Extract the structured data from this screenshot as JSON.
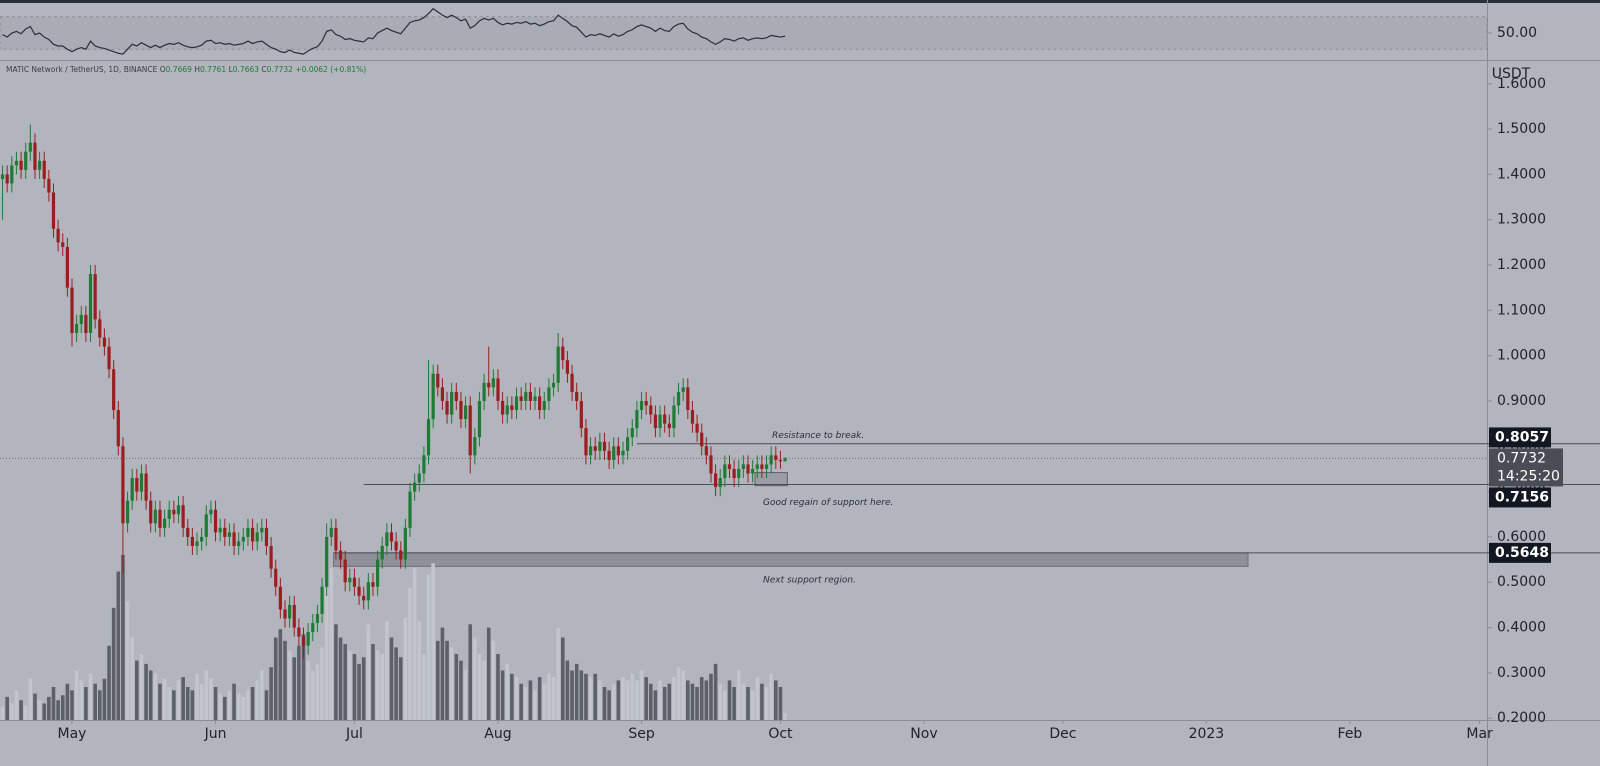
{
  "chart_data": {
    "type": "candlestick",
    "title": "MATIC Network / TetherUS, 1D, BINANCE",
    "ohlc_labels": [
      "O",
      "H",
      "L",
      "C"
    ],
    "change": "+0.0062",
    "change_percent": "(+0.81%)",
    "axis_unit": "USDT",
    "countdown": "14:25:20",
    "up_color": "#1e7b34",
    "down_color": "#9b1d20",
    "volume_up_color": "#c3c5cc",
    "volume_down_color": "#5d6069",
    "rsi_color": "#2a2e39",
    "open": [
      1.39,
      1.4,
      1.38,
      1.42,
      1.43,
      1.41,
      1.45,
      1.47,
      1.41,
      1.43,
      1.39,
      1.36,
      1.28,
      1.25,
      1.24,
      1.15,
      1.05,
      1.07,
      1.09,
      1.05,
      1.18,
      1.08,
      1.04,
      1.02,
      0.97,
      0.88,
      0.8,
      0.63,
      0.68,
      0.73,
      0.7,
      0.74,
      0.68,
      0.63,
      0.66,
      0.62,
      0.64,
      0.66,
      0.65,
      0.67,
      0.62,
      0.6,
      0.58,
      0.59,
      0.6,
      0.65,
      0.66,
      0.61,
      0.62,
      0.6,
      0.61,
      0.58,
      0.59,
      0.6,
      0.62,
      0.59,
      0.61,
      0.62,
      0.58,
      0.53,
      0.49,
      0.44,
      0.42,
      0.45,
      0.4,
      0.38,
      0.36,
      0.39,
      0.41,
      0.43,
      0.49,
      0.6,
      0.62,
      0.57,
      0.55,
      0.5,
      0.51,
      0.49,
      0.47,
      0.46,
      0.5,
      0.49,
      0.55,
      0.58,
      0.61,
      0.59,
      0.57,
      0.55,
      0.62,
      0.7,
      0.72,
      0.74,
      0.78,
      0.86,
      0.96,
      0.93,
      0.9,
      0.87,
      0.92,
      0.9,
      0.86,
      0.89,
      0.78,
      0.82,
      0.9,
      0.94,
      0.93,
      0.95,
      0.9,
      0.87,
      0.89,
      0.88,
      0.91,
      0.9,
      0.92,
      0.9,
      0.91,
      0.88,
      0.9,
      0.93,
      0.94,
      1.02,
      0.99,
      0.96,
      0.92,
      0.9,
      0.84,
      0.78,
      0.8,
      0.79,
      0.81,
      0.79,
      0.77,
      0.8,
      0.78,
      0.79,
      0.82,
      0.84,
      0.88,
      0.9,
      0.89,
      0.87,
      0.84,
      0.87,
      0.85,
      0.84,
      0.89,
      0.92,
      0.93,
      0.88,
      0.85,
      0.83,
      0.8,
      0.78,
      0.74,
      0.71,
      0.73,
      0.76,
      0.75,
      0.73,
      0.75,
      0.76,
      0.74,
      0.75,
      0.76,
      0.75,
      0.76,
      0.78,
      0.77,
      0.7669
    ],
    "high": [
      1.42,
      1.42,
      1.44,
      1.45,
      1.45,
      1.47,
      1.51,
      1.49,
      1.45,
      1.45,
      1.41,
      1.38,
      1.3,
      1.27,
      1.26,
      1.17,
      1.09,
      1.11,
      1.11,
      1.2,
      1.2,
      1.1,
      1.06,
      1.04,
      0.99,
      0.9,
      0.82,
      0.7,
      0.75,
      0.75,
      0.76,
      0.76,
      0.7,
      0.68,
      0.68,
      0.66,
      0.68,
      0.68,
      0.69,
      0.69,
      0.64,
      0.62,
      0.61,
      0.62,
      0.67,
      0.68,
      0.68,
      0.64,
      0.64,
      0.63,
      0.63,
      0.61,
      0.62,
      0.64,
      0.64,
      0.63,
      0.64,
      0.64,
      0.6,
      0.55,
      0.51,
      0.46,
      0.47,
      0.47,
      0.42,
      0.4,
      0.41,
      0.43,
      0.45,
      0.51,
      0.63,
      0.64,
      0.64,
      0.59,
      0.57,
      0.53,
      0.53,
      0.51,
      0.49,
      0.52,
      0.52,
      0.57,
      0.6,
      0.63,
      0.63,
      0.61,
      0.59,
      0.64,
      0.72,
      0.74,
      0.76,
      0.8,
      0.99,
      0.98,
      0.98,
      0.95,
      0.92,
      0.94,
      0.94,
      0.92,
      0.91,
      0.91,
      0.84,
      0.92,
      0.96,
      1.02,
      0.97,
      0.97,
      0.92,
      0.91,
      0.91,
      0.93,
      0.93,
      0.94,
      0.94,
      0.93,
      0.93,
      0.92,
      0.95,
      0.96,
      1.05,
      1.04,
      1.01,
      0.98,
      0.94,
      0.92,
      0.86,
      0.82,
      0.82,
      0.83,
      0.83,
      0.81,
      0.82,
      0.82,
      0.81,
      0.84,
      0.86,
      0.9,
      0.92,
      0.92,
      0.91,
      0.89,
      0.89,
      0.89,
      0.87,
      0.91,
      0.94,
      0.95,
      0.95,
      0.9,
      0.87,
      0.85,
      0.82,
      0.8,
      0.76,
      0.75,
      0.78,
      0.78,
      0.77,
      0.77,
      0.78,
      0.78,
      0.77,
      0.78,
      0.78,
      0.78,
      0.8,
      0.8,
      0.79,
      0.7761
    ],
    "low": [
      1.3,
      1.36,
      1.36,
      1.4,
      1.39,
      1.39,
      1.43,
      1.39,
      1.39,
      1.37,
      1.34,
      1.26,
      1.23,
      1.22,
      1.13,
      1.02,
      1.03,
      1.05,
      1.03,
      1.03,
      1.06,
      1.02,
      1.0,
      0.95,
      0.86,
      0.78,
      0.52,
      0.61,
      0.66,
      0.68,
      0.68,
      0.66,
      0.61,
      0.61,
      0.6,
      0.6,
      0.62,
      0.63,
      0.63,
      0.6,
      0.58,
      0.56,
      0.56,
      0.57,
      0.58,
      0.63,
      0.59,
      0.59,
      0.58,
      0.58,
      0.56,
      0.56,
      0.57,
      0.58,
      0.57,
      0.57,
      0.59,
      0.56,
      0.51,
      0.47,
      0.42,
      0.4,
      0.4,
      0.38,
      0.36,
      0.33,
      0.34,
      0.37,
      0.39,
      0.41,
      0.47,
      0.58,
      0.55,
      0.53,
      0.48,
      0.48,
      0.47,
      0.45,
      0.44,
      0.44,
      0.47,
      0.47,
      0.53,
      0.56,
      0.57,
      0.55,
      0.53,
      0.53,
      0.6,
      0.68,
      0.7,
      0.72,
      0.76,
      0.84,
      0.91,
      0.88,
      0.85,
      0.85,
      0.88,
      0.84,
      0.84,
      0.74,
      0.76,
      0.8,
      0.88,
      0.91,
      0.91,
      0.88,
      0.85,
      0.85,
      0.86,
      0.86,
      0.88,
      0.88,
      0.88,
      0.88,
      0.86,
      0.86,
      0.88,
      0.91,
      0.92,
      0.97,
      0.94,
      0.9,
      0.88,
      0.82,
      0.76,
      0.76,
      0.77,
      0.77,
      0.77,
      0.75,
      0.75,
      0.76,
      0.76,
      0.77,
      0.8,
      0.82,
      0.86,
      0.87,
      0.85,
      0.82,
      0.82,
      0.83,
      0.82,
      0.82,
      0.87,
      0.9,
      0.86,
      0.83,
      0.81,
      0.78,
      0.76,
      0.72,
      0.69,
      0.69,
      0.71,
      0.73,
      0.71,
      0.71,
      0.73,
      0.72,
      0.72,
      0.73,
      0.73,
      0.73,
      0.74,
      0.75,
      0.75,
      0.7663
    ],
    "close": [
      1.4,
      1.38,
      1.42,
      1.43,
      1.41,
      1.45,
      1.47,
      1.41,
      1.43,
      1.39,
      1.36,
      1.28,
      1.25,
      1.24,
      1.15,
      1.05,
      1.07,
      1.09,
      1.05,
      1.18,
      1.08,
      1.04,
      1.02,
      0.97,
      0.88,
      0.8,
      0.63,
      0.68,
      0.73,
      0.7,
      0.74,
      0.68,
      0.63,
      0.66,
      0.62,
      0.64,
      0.66,
      0.65,
      0.67,
      0.62,
      0.6,
      0.58,
      0.59,
      0.6,
      0.65,
      0.66,
      0.61,
      0.62,
      0.6,
      0.61,
      0.58,
      0.59,
      0.6,
      0.62,
      0.59,
      0.61,
      0.62,
      0.58,
      0.53,
      0.49,
      0.44,
      0.42,
      0.45,
      0.4,
      0.38,
      0.36,
      0.39,
      0.41,
      0.43,
      0.49,
      0.6,
      0.62,
      0.57,
      0.55,
      0.5,
      0.51,
      0.49,
      0.47,
      0.46,
      0.5,
      0.49,
      0.55,
      0.58,
      0.61,
      0.59,
      0.57,
      0.55,
      0.62,
      0.7,
      0.72,
      0.74,
      0.78,
      0.86,
      0.96,
      0.93,
      0.9,
      0.87,
      0.92,
      0.9,
      0.86,
      0.89,
      0.78,
      0.82,
      0.9,
      0.94,
      0.93,
      0.95,
      0.9,
      0.87,
      0.89,
      0.88,
      0.91,
      0.9,
      0.92,
      0.9,
      0.91,
      0.88,
      0.9,
      0.93,
      0.94,
      1.02,
      0.99,
      0.96,
      0.92,
      0.9,
      0.84,
      0.78,
      0.8,
      0.79,
      0.81,
      0.79,
      0.77,
      0.8,
      0.78,
      0.79,
      0.82,
      0.84,
      0.88,
      0.9,
      0.89,
      0.87,
      0.84,
      0.87,
      0.85,
      0.84,
      0.89,
      0.92,
      0.93,
      0.88,
      0.85,
      0.83,
      0.8,
      0.78,
      0.74,
      0.71,
      0.73,
      0.76,
      0.75,
      0.73,
      0.75,
      0.76,
      0.74,
      0.75,
      0.76,
      0.75,
      0.76,
      0.78,
      0.77,
      0.7669,
      0.7732
    ],
    "volume": [
      8,
      14,
      10,
      18,
      12,
      9,
      25,
      16,
      12,
      10,
      14,
      20,
      12,
      15,
      22,
      18,
      30,
      24,
      20,
      28,
      22,
      18,
      25,
      45,
      68,
      90,
      100,
      72,
      50,
      36,
      40,
      34,
      30,
      28,
      22,
      25,
      20,
      18,
      24,
      26,
      20,
      18,
      28,
      22,
      30,
      25,
      20,
      16,
      14,
      18,
      22,
      16,
      14,
      18,
      20,
      24,
      30,
      18,
      32,
      50,
      55,
      48,
      42,
      38,
      45,
      52,
      36,
      30,
      34,
      44,
      80,
      92,
      58,
      50,
      46,
      42,
      40,
      34,
      38,
      58,
      46,
      42,
      40,
      60,
      50,
      44,
      38,
      62,
      80,
      92,
      60,
      40,
      88,
      95,
      48,
      56,
      48,
      44,
      40,
      36,
      30,
      58,
      50,
      40,
      36,
      56,
      48,
      40,
      30,
      34,
      28,
      26,
      22,
      20,
      24,
      18,
      26,
      22,
      28,
      26,
      56,
      50,
      36,
      30,
      34,
      30,
      28,
      26,
      28,
      24,
      20,
      18,
      22,
      24,
      26,
      24,
      28,
      24,
      30,
      26,
      22,
      18,
      24,
      20,
      22,
      26,
      32,
      30,
      24,
      22,
      20,
      26,
      24,
      28,
      34,
      22,
      18,
      24,
      20,
      30,
      22,
      20,
      18,
      26,
      22,
      20,
      28,
      24,
      20,
      4
    ],
    "rsi": [
      48,
      45,
      50,
      52,
      49,
      55,
      58,
      48,
      50,
      45,
      42,
      36,
      34,
      34,
      30,
      27,
      30,
      32,
      30,
      40,
      34,
      32,
      31,
      29,
      27,
      25,
      24,
      30,
      36,
      34,
      38,
      35,
      32,
      35,
      32,
      35,
      37,
      36,
      38,
      35,
      33,
      32,
      33,
      35,
      40,
      41,
      37,
      38,
      36,
      37,
      35,
      36,
      37,
      40,
      37,
      39,
      40,
      36,
      32,
      30,
      27,
      26,
      29,
      26,
      25,
      24,
      28,
      31,
      33,
      40,
      52,
      54,
      48,
      46,
      42,
      43,
      41,
      40,
      39,
      44,
      43,
      50,
      53,
      56,
      53,
      51,
      49,
      56,
      63,
      65,
      66,
      69,
      74,
      80,
      76,
      72,
      69,
      72,
      69,
      65,
      67,
      56,
      59,
      65,
      68,
      66,
      68,
      63,
      60,
      62,
      61,
      63,
      62,
      64,
      61,
      62,
      59,
      61,
      64,
      65,
      72,
      68,
      64,
      59,
      57,
      51,
      45,
      48,
      47,
      49,
      47,
      45,
      49,
      46,
      48,
      52,
      54,
      58,
      60,
      58,
      56,
      52,
      56,
      53,
      52,
      58,
      61,
      62,
      55,
      51,
      49,
      45,
      43,
      39,
      36,
      39,
      43,
      42,
      40,
      43,
      44,
      41,
      43,
      44,
      43,
      44,
      47,
      46,
      45,
      46
    ],
    "rsi_band": [
      30,
      70
    ],
    "rsi_ylim": [
      16.7,
      87
    ],
    "rsi_yticks": [
      {
        "value": 50,
        "label": "50.00"
      }
    ],
    "xlim": [
      -0.55,
      320.6
    ],
    "xticks": [
      {
        "value": 15,
        "label": "May"
      },
      {
        "value": 46,
        "label": "Jun"
      },
      {
        "value": 76,
        "label": "Jul"
      },
      {
        "value": 107,
        "label": "Aug"
      },
      {
        "value": 138,
        "label": "Sep"
      },
      {
        "value": 168,
        "label": "Oct"
      },
      {
        "value": 199,
        "label": "Nov"
      },
      {
        "value": 229,
        "label": "Dec"
      },
      {
        "value": 260,
        "label": "2023"
      },
      {
        "value": 291,
        "label": "Feb"
      },
      {
        "value": 319,
        "label": "Mar"
      }
    ],
    "ylim": [
      0.196,
      1.648
    ],
    "yticks": [
      {
        "value": 0.2,
        "label": "0.2000"
      },
      {
        "value": 0.3,
        "label": "0.3000"
      },
      {
        "value": 0.4,
        "label": "0.4000"
      },
      {
        "value": 0.5,
        "label": "0.5000"
      },
      {
        "value": 0.6,
        "label": "0.6000"
      },
      {
        "value": 0.7,
        "label": "0.7000"
      },
      {
        "value": 0.8,
        "label": "0.8000"
      },
      {
        "value": 0.9,
        "label": "0.9000"
      },
      {
        "value": 1.0,
        "label": "1.0000"
      },
      {
        "value": 1.1,
        "label": "1.1000"
      },
      {
        "value": 1.2,
        "label": "1.2000"
      },
      {
        "value": 1.3,
        "label": "1.3000"
      },
      {
        "value": 1.4,
        "label": "1.4000"
      },
      {
        "value": 1.5,
        "label": "1.5000"
      },
      {
        "value": 1.6,
        "label": "1.6000"
      }
    ],
    "resistance": 0.8057,
    "support": 0.7156,
    "next_support": 0.5648,
    "next_support_zone": [
      0.5648,
      0.535
    ],
    "support_box": [
      0.742,
      0.713
    ],
    "annotations": [
      "Resistance to break.",
      "Good regain of support here.",
      "Next support region."
    ]
  }
}
